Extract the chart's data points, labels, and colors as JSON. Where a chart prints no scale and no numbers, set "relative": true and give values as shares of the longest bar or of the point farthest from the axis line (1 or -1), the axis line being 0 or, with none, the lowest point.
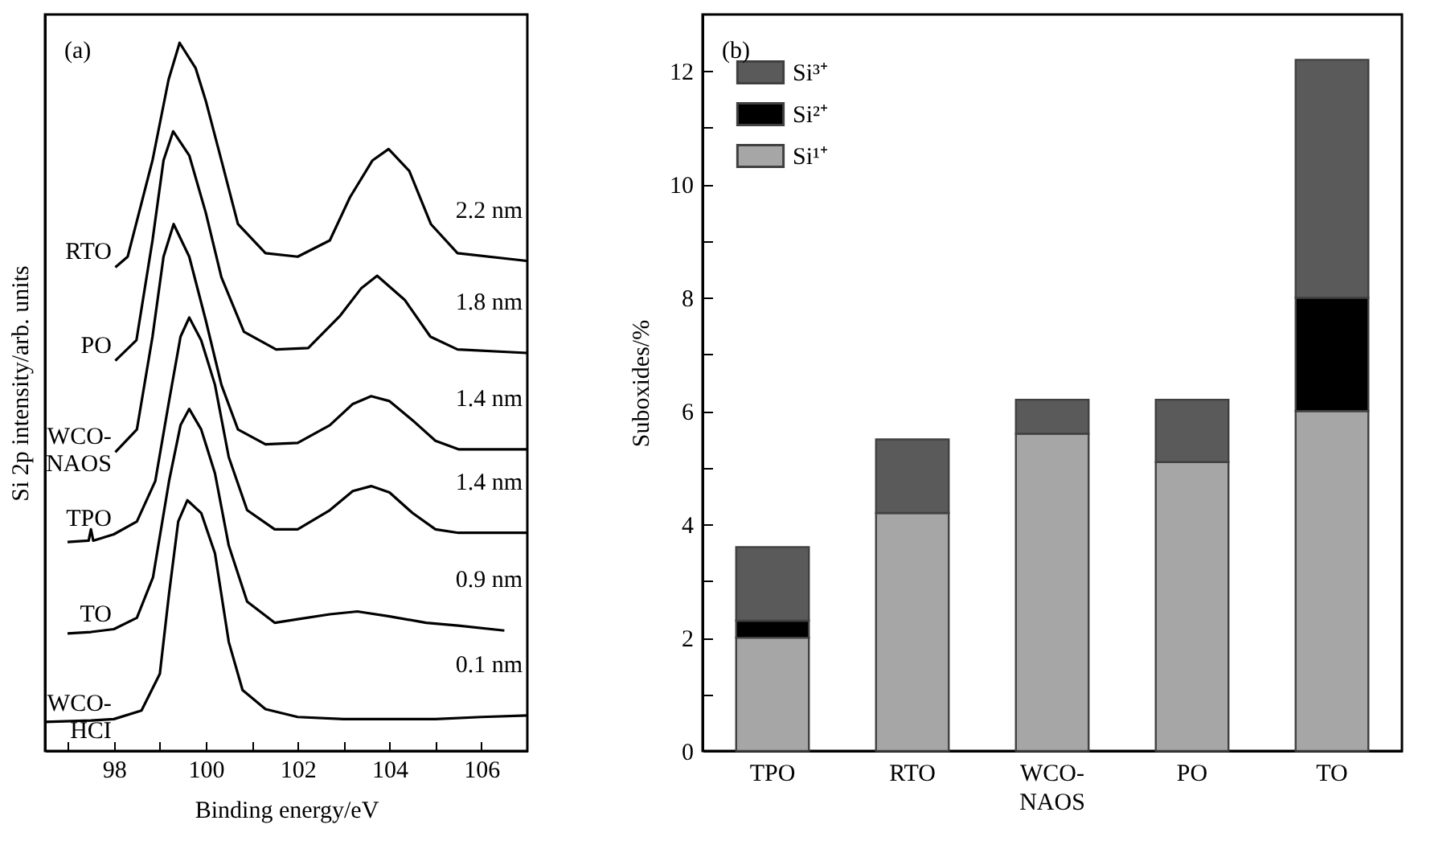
{
  "chart_data": [
    {
      "type": "line",
      "title": "(a)",
      "xlabel": "Binding energy/eV",
      "ylabel": "Si 2p intensity/arb. units",
      "relative": true,
      "xlim": [
        96.5,
        107
      ],
      "xticks": [
        {
          "value": 97,
          "label": null
        },
        98,
        {
          "value": 99,
          "label": null
        },
        100,
        {
          "value": 101,
          "label": null
        },
        102,
        {
          "value": 103,
          "label": null
        },
        104,
        {
          "value": 105,
          "label": null
        },
        106
      ],
      "tick_labels": "x",
      "series": [
        {
          "name": "RTO",
          "color": "#000000",
          "x": [
            98.03,
            98.3,
            98.84,
            99.19,
            99.43,
            99.78,
            100.0,
            100.34,
            100.7,
            101.3,
            102.0,
            102.7,
            103.14,
            103.63,
            103.98,
            104.43,
            104.9,
            105.48,
            106.99
          ],
          "values": [
            0.683,
            0.698,
            0.834,
            0.948,
            1.0,
            0.964,
            0.918,
            0.834,
            0.744,
            0.703,
            0.698,
            0.721,
            0.782,
            0.834,
            0.85,
            0.819,
            0.744,
            0.703,
            0.692
          ]
        },
        {
          "name": "PO",
          "color": "#000000",
          "x": [
            98.03,
            98.49,
            98.84,
            99.08,
            99.29,
            99.64,
            100.0,
            100.34,
            100.83,
            101.53,
            102.23,
            102.93,
            103.38,
            103.73,
            104.33,
            104.89,
            105.48,
            106.99
          ],
          "values": [
            0.551,
            0.58,
            0.721,
            0.834,
            0.875,
            0.841,
            0.76,
            0.669,
            0.592,
            0.567,
            0.569,
            0.615,
            0.653,
            0.671,
            0.637,
            0.585,
            0.567,
            0.562
          ]
        },
        {
          "name": "WCO-NAOS",
          "color": "#000000",
          "x": [
            98.03,
            98.5,
            98.84,
            99.08,
            99.3,
            99.64,
            100.0,
            100.34,
            100.7,
            101.3,
            102.0,
            102.7,
            103.2,
            103.6,
            104.0,
            104.5,
            105.0,
            105.5,
            107.0
          ],
          "values": [
            0.422,
            0.454,
            0.585,
            0.698,
            0.744,
            0.698,
            0.608,
            0.517,
            0.454,
            0.433,
            0.435,
            0.46,
            0.49,
            0.501,
            0.494,
            0.467,
            0.438,
            0.426,
            0.426
          ]
        },
        {
          "name": "TPO",
          "color": "#000000",
          "x": [
            96.99,
            97.45,
            97.5,
            97.55,
            98.0,
            98.5,
            98.9,
            99.2,
            99.45,
            99.64,
            99.9,
            100.2,
            100.5,
            100.9,
            101.5,
            102.0,
            102.7,
            103.2,
            103.6,
            104.0,
            104.5,
            105.0,
            105.5,
            107.0
          ],
          "values": [
            0.295,
            0.297,
            0.313,
            0.297,
            0.306,
            0.324,
            0.381,
            0.494,
            0.585,
            0.612,
            0.58,
            0.517,
            0.415,
            0.34,
            0.313,
            0.313,
            0.34,
            0.367,
            0.374,
            0.365,
            0.336,
            0.313,
            0.308,
            0.308
          ]
        },
        {
          "name": "TO",
          "color": "#000000",
          "x": [
            96.99,
            97.5,
            98.0,
            98.5,
            98.85,
            99.2,
            99.45,
            99.64,
            99.9,
            100.2,
            100.5,
            100.9,
            101.5,
            102.0,
            102.7,
            103.3,
            104.0,
            104.8,
            105.5,
            106.5
          ],
          "values": [
            0.166,
            0.168,
            0.172,
            0.188,
            0.245,
            0.381,
            0.46,
            0.483,
            0.454,
            0.392,
            0.29,
            0.211,
            0.181,
            0.186,
            0.193,
            0.197,
            0.19,
            0.181,
            0.177,
            0.17
          ]
        },
        {
          "name": "WCO-HCI",
          "color": "#000000",
          "x": [
            96.5,
            97.5,
            98.0,
            98.6,
            99.0,
            99.2,
            99.4,
            99.6,
            99.9,
            100.2,
            100.5,
            100.8,
            101.3,
            102.0,
            103.0,
            104.0,
            105.0,
            106.0,
            107.0
          ],
          "values": [
            0.041,
            0.043,
            0.045,
            0.057,
            0.109,
            0.222,
            0.324,
            0.354,
            0.336,
            0.279,
            0.154,
            0.086,
            0.059,
            0.048,
            0.045,
            0.045,
            0.045,
            0.048,
            0.05
          ]
        }
      ],
      "annotations": [
        "2.2 nm",
        "1.8 nm",
        "1.4 nm",
        "1.4 nm",
        "0.9 nm",
        "0.1 nm"
      ]
    },
    {
      "type": "bar",
      "title": "(b)",
      "ylabel": "Suboxides/%",
      "stacked": true,
      "legend": "top left",
      "categories": [
        "TPO",
        "RTO",
        "WCO-NAOS",
        "PO",
        "TO"
      ],
      "ylim": [
        0,
        13
      ],
      "yticks": [
        0,
        {
          "value": 1,
          "label": null
        },
        2,
        {
          "value": 3,
          "label": null
        },
        4,
        {
          "value": 5,
          "label": null
        },
        6,
        {
          "value": 7,
          "label": null
        },
        8,
        {
          "value": 9,
          "label": null
        },
        10,
        {
          "value": 11,
          "label": null
        },
        12
      ],
      "series": [
        {
          "name": "Si¹⁺",
          "color": "#a6a6a6",
          "values": [
            2.0,
            4.2,
            5.6,
            5.1,
            6.0
          ]
        },
        {
          "name": "Si²⁺",
          "color": "#000000",
          "values": [
            0.3,
            0,
            0,
            0,
            2.0
          ]
        },
        {
          "name": "Si³⁺",
          "color": "#5a5a5a",
          "values": [
            1.3,
            1.3,
            0.6,
            1.1,
            4.2
          ]
        }
      ]
    }
  ]
}
